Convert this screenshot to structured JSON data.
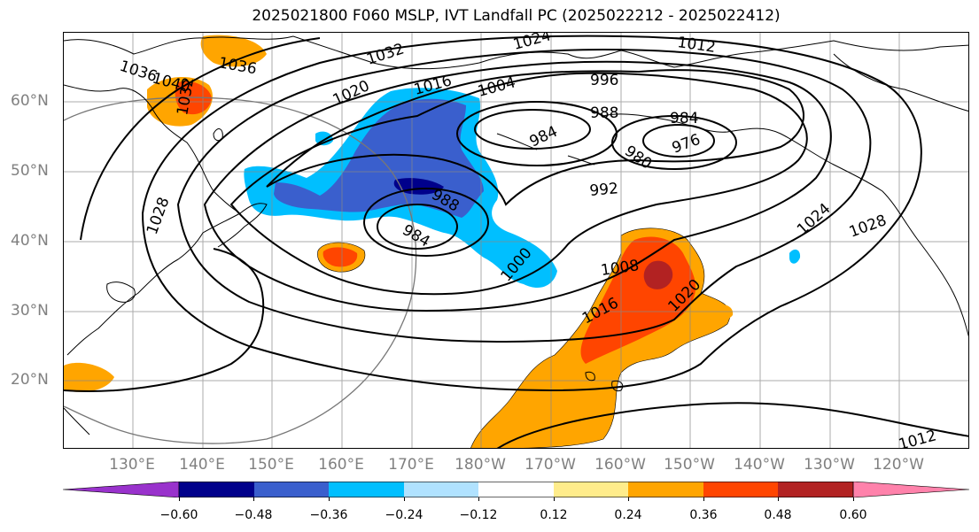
{
  "title": "2025021800 F060 MSLP, IVT Landfall PC (2025022212 - 2025022412)",
  "lat_labels": [
    "60°N",
    "50°N",
    "40°N",
    "30°N",
    "20°N"
  ],
  "lon_labels": [
    "130°E",
    "140°E",
    "150°E",
    "160°E",
    "170°E",
    "180°W",
    "170°W",
    "160°W",
    "150°W",
    "140°W",
    "130°W",
    "120°W"
  ],
  "colorbar": {
    "ticks": [
      "−0.60",
      "−0.48",
      "−0.36",
      "−0.24",
      "−0.12",
      "0.12",
      "0.24",
      "0.36",
      "0.48",
      "0.60"
    ],
    "colors": [
      "#9932CC",
      "#00008B",
      "#3A5FCD",
      "#00BFFF",
      "#B0E2FF",
      "#FFFFFF",
      "#FFEC8B",
      "#FFA500",
      "#FF4500",
      "#B22222",
      "#FF82AB"
    ]
  },
  "isobar_labels": [
    {
      "text": "1024",
      "id": "a"
    },
    {
      "text": "1032",
      "id": "b"
    },
    {
      "text": "1012",
      "id": "c"
    },
    {
      "text": "1036",
      "id": "d"
    },
    {
      "text": "1040",
      "id": "e"
    },
    {
      "text": "1036",
      "id": "f"
    },
    {
      "text": "1032",
      "id": "g"
    },
    {
      "text": "1020",
      "id": "h"
    },
    {
      "text": "1016",
      "id": "i"
    },
    {
      "text": "1004",
      "id": "j"
    },
    {
      "text": "996",
      "id": "k"
    },
    {
      "text": "988",
      "id": "l"
    },
    {
      "text": "984",
      "id": "m"
    },
    {
      "text": "984",
      "id": "n"
    },
    {
      "text": "980",
      "id": "o"
    },
    {
      "text": "976",
      "id": "p"
    },
    {
      "text": "992",
      "id": "q"
    },
    {
      "text": "988",
      "id": "r"
    },
    {
      "text": "984",
      "id": "s"
    },
    {
      "text": "1000",
      "id": "t"
    },
    {
      "text": "1008",
      "id": "u"
    },
    {
      "text": "1016",
      "id": "v"
    },
    {
      "text": "1020",
      "id": "w"
    },
    {
      "text": "1024",
      "id": "x"
    },
    {
      "text": "1028",
      "id": "y"
    },
    {
      "text": "1028",
      "id": "z"
    },
    {
      "text": "1012",
      "id": "aa"
    }
  ]
}
